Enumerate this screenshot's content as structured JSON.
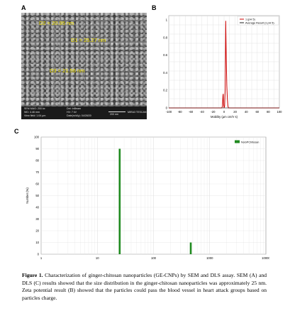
{
  "panels": {
    "a_letter": "A",
    "b_letter": "B",
    "c_letter": "C"
  },
  "sem": {
    "labels": [
      {
        "text": "D2 = 20.95 nm"
      },
      {
        "text": "D1 = 25.27 nm"
      },
      {
        "text": "D3 = 21.56 nm"
      }
    ],
    "info_bar": {
      "left_lines": [
        "SEM MAG: 200 kx",
        "WD: 4.46 mm",
        "View field: 1.04 μm"
      ],
      "mid_lines": [
        "Det: InBeam",
        "HV: 7 kV",
        "Date(m/d/y): 04/28/20"
      ],
      "scale_text": "200 nm",
      "right_text": "MIRA3 TESCAN"
    },
    "label_color": "#f2e200"
  },
  "chart_data": [
    {
      "type": "line",
      "panel": "B",
      "title": "",
      "xlabel": "Mobility (μm cm/V s)",
      "ylabel": "",
      "xlim": [
        -100,
        100
      ],
      "ylim": [
        0,
        1.05
      ],
      "xticks": [
        -100,
        -80,
        -60,
        -40,
        -20,
        0,
        20,
        40,
        60,
        80,
        100
      ],
      "yticks": [
        0,
        0.2,
        0.4,
        0.6,
        0.8,
        1
      ],
      "legend_position": "top-right",
      "grid": true,
      "series": [
        {
          "name": "1 (pH 5)",
          "color": "#cc0000",
          "x": [
            -100,
            -4,
            -3,
            -2,
            -1.5,
            -1,
            0,
            1,
            2,
            3,
            4,
            5,
            6,
            7,
            8,
            100
          ],
          "y": [
            0,
            0,
            0.02,
            0.14,
            0.16,
            0.05,
            0,
            0.02,
            0.2,
            0.99,
            0.55,
            0.25,
            0.1,
            0.02,
            0,
            0
          ]
        },
        {
          "name": "Average Result (1 pH 5)",
          "color": "#222222",
          "x": [
            -100,
            100
          ],
          "y": [
            0,
            0
          ]
        }
      ]
    },
    {
      "type": "bar",
      "panel": "C",
      "title": "",
      "xlabel": "",
      "ylabel": "Number (%)",
      "xscale": "log",
      "xlim": [
        1,
        10000
      ],
      "ylim": [
        0,
        100
      ],
      "xticks": [
        1,
        10,
        100,
        1000,
        10000
      ],
      "yticks": [
        0,
        10,
        20,
        30,
        40,
        50,
        60,
        70,
        80,
        90,
        100
      ],
      "legend_position": "top-right",
      "grid": true,
      "series": [
        {
          "name": "NoGPChitosan",
          "color": "#1f8a1f",
          "x": [
            25,
            460
          ],
          "y": [
            90,
            10
          ]
        }
      ]
    }
  ],
  "caption": {
    "label": "Figure 1.",
    "text": " Characterization of ginger-chitosan nanoparticles (GE-CNPs) by SEM and DLS assay. SEM (A) and DLS (C) results showed that the size distribution in the ginger-chitosan nanoparticles was approximately 25 nm. Zeta potential result (B) showed that the particles could pass the blood vessel in heart attack groups based on particles charge."
  }
}
